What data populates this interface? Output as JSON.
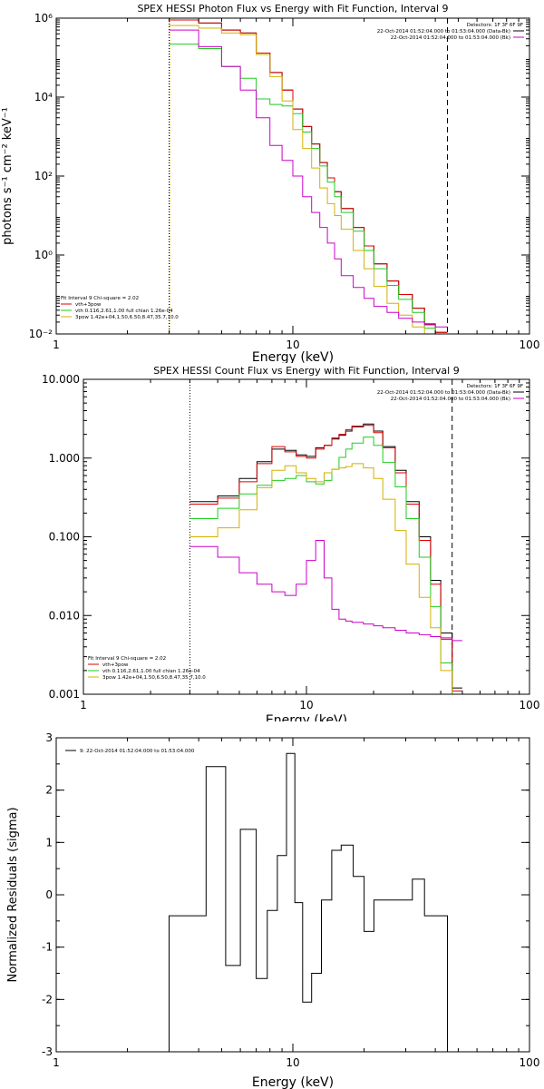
{
  "chart_data": [
    {
      "type": "line",
      "title": "SPEX HESSI Photon Flux vs Energy with Fit Function, Interval 9",
      "xlabel": "Energy (keV)",
      "ylabel": "photons s⁻¹ cm⁻² keV⁻¹",
      "xscale": "log",
      "yscale": "log",
      "xlim": [
        1,
        100
      ],
      "ylim": [
        0.01,
        1000000
      ],
      "xticks": [
        {
          "v": 1,
          "t": "1"
        },
        {
          "v": 10,
          "t": "10"
        },
        {
          "v": 100,
          "t": "100"
        }
      ],
      "yticks": [
        {
          "v": 0.01,
          "t": "10⁻²"
        },
        {
          "v": 1,
          "t": "10⁰"
        },
        {
          "v": 100,
          "t": "10²"
        },
        {
          "v": 10000,
          "t": "10⁴"
        },
        {
          "v": 1000000,
          "t": "10⁶"
        }
      ],
      "vlines": [
        {
          "x": 3,
          "style": "dotted",
          "color": "#000000"
        },
        {
          "x": 3,
          "style": "dotted",
          "color": "#d4b000"
        },
        {
          "x": 45,
          "style": "dashed",
          "color": "#000000"
        }
      ],
      "legend_right": {
        "header": "Detectors: 1F 3F 6F 9F",
        "entries": [
          {
            "text": "22-Oct-2014 01:52:04.000 to 01:53:04.000 (Data-Bk)",
            "color": "#000000"
          },
          {
            "text": "22-Oct-2014 01:52:04.000 to 01:53:04.000 (Bk)",
            "color": "#cc00cc"
          }
        ]
      },
      "legend_left": {
        "header": "Fit Interval 9   Chi-square = 2.02",
        "entries": [
          {
            "text": "vth+3pow",
            "color": "#dd0000"
          },
          {
            "text": "vth 0.116,2.61,1.00  full chian 1.26e-04",
            "color": "#22cc22"
          },
          {
            "text": "3pow 1.42e+04,1.50,6.50,8.47,35.7,10.0",
            "color": "#d4b000"
          }
        ]
      },
      "edges": [
        3,
        4,
        5,
        6,
        7,
        8,
        9,
        10,
        11,
        12,
        13,
        14,
        15,
        16,
        18,
        20,
        22,
        25,
        28,
        32,
        36,
        40,
        45
      ],
      "series": [
        {
          "key": "data",
          "color": "#000000",
          "values": [
            900000,
            750000,
            500000,
            420000,
            130000,
            42000,
            15000,
            5000,
            1800,
            650,
            220,
            90,
            40,
            15,
            5,
            1.7,
            0.6,
            0.22,
            0.1,
            0.045,
            0.018,
            0.011
          ]
        },
        {
          "key": "total",
          "color": "#dd0000",
          "values": [
            900000,
            750000,
            500000,
            420000,
            130000,
            42000,
            15000,
            5000,
            1800,
            650,
            220,
            90,
            40,
            15,
            5,
            1.7,
            0.6,
            0.22,
            0.1,
            0.045,
            0.018,
            0.011
          ]
        },
        {
          "key": "vth",
          "color": "#22cc22",
          "values": [
            220000,
            170000,
            60000,
            30000,
            9000,
            6500,
            6000,
            3800,
            1300,
            500,
            180,
            70,
            30,
            12,
            4,
            1.3,
            0.45,
            0.17,
            0.075,
            0.035,
            0.014,
            0.009
          ]
        },
        {
          "key": "pow",
          "color": "#d4b000",
          "values": [
            650000,
            560000,
            420000,
            380000,
            120000,
            33000,
            8000,
            1500,
            500,
            160,
            50,
            20,
            10,
            4.5,
            1.3,
            0.45,
            0.16,
            0.06,
            0.03,
            0.015,
            0.007,
            0.005
          ]
        },
        {
          "key": "bk",
          "color": "#cc00cc",
          "values": [
            500000,
            190000,
            60000,
            15000,
            3000,
            600,
            250,
            100,
            30,
            12,
            5,
            2,
            0.8,
            0.3,
            0.15,
            0.08,
            0.05,
            0.035,
            0.025,
            0.02,
            0.017,
            0.015
          ]
        }
      ]
    },
    {
      "type": "line",
      "title": "SPEX HESSI Count Flux vs Energy with Fit Function, Interval 9",
      "xlabel": "Energy (keV)",
      "ylabel": "",
      "xscale": "log",
      "yscale": "log",
      "xlim": [
        1,
        100
      ],
      "ylim": [
        0.001,
        10
      ],
      "xticks": [
        {
          "v": 1,
          "t": "1"
        },
        {
          "v": 10,
          "t": "10"
        },
        {
          "v": 100,
          "t": "100"
        }
      ],
      "yticks": [
        {
          "v": 0.001,
          "t": "0.001"
        },
        {
          "v": 0.01,
          "t": "0.010"
        },
        {
          "v": 0.1,
          "t": "0.100"
        },
        {
          "v": 1,
          "t": "1.000"
        },
        {
          "v": 10,
          "t": "10.000"
        }
      ],
      "vlines": [
        {
          "x": 3,
          "style": "dotted",
          "color": "#000000"
        },
        {
          "x": 45,
          "style": "dashed",
          "color": "#000000"
        }
      ],
      "legend_right": {
        "header": "Detectors: 1F 3F 6F 9F",
        "entries": [
          {
            "text": "22-Oct-2014 01:52:04.000 to 01:53:04.000 (Data-Bk)",
            "color": "#000000"
          },
          {
            "text": "22-Oct-2014 01:52:04.000 to 01:53:04.000 (Bk)",
            "color": "#cc00cc"
          }
        ]
      },
      "legend_left": {
        "header": "Fit Interval 9   Chi-square = 2.02",
        "entries": [
          {
            "text": "vth+3pow",
            "color": "#dd0000"
          },
          {
            "text": "vth 0.116,2.61,1.00  full chian 1.26e-04",
            "color": "#22cc22"
          },
          {
            "text": "3pow 1.42e+04,1.50,6.50,8.47,35.7,10.0",
            "color": "#d4b000"
          }
        ]
      },
      "edges": [
        3,
        4,
        5,
        6,
        7,
        8,
        9,
        10,
        11,
        12,
        13,
        14,
        15,
        16,
        18,
        20,
        22,
        25,
        28,
        32,
        36,
        40,
        45,
        50
      ],
      "series": [
        {
          "key": "data",
          "color": "#000000",
          "values": [
            0.28,
            0.33,
            0.55,
            0.9,
            1.3,
            1.25,
            1.1,
            1.05,
            1.35,
            1.45,
            1.75,
            1.95,
            2.2,
            2.5,
            2.7,
            2.2,
            1.4,
            0.7,
            0.28,
            0.1,
            0.028,
            0.006,
            0.0012
          ]
        },
        {
          "key": "total",
          "color": "#dd0000",
          "values": [
            0.26,
            0.31,
            0.5,
            0.85,
            1.4,
            1.2,
            1.05,
            1.0,
            1.3,
            1.45,
            1.8,
            2.0,
            2.3,
            2.55,
            2.6,
            2.1,
            1.35,
            0.65,
            0.26,
            0.09,
            0.025,
            0.005,
            0.0011
          ]
        },
        {
          "key": "vth",
          "color": "#22cc22",
          "values": [
            0.17,
            0.23,
            0.35,
            0.45,
            0.52,
            0.55,
            0.6,
            0.5,
            0.47,
            0.52,
            0.72,
            1.02,
            1.3,
            1.55,
            1.85,
            1.45,
            0.88,
            0.43,
            0.17,
            0.055,
            0.013,
            0.0025,
            0.0006
          ]
        },
        {
          "key": "pow",
          "color": "#d4b000",
          "values": [
            0.1,
            0.13,
            0.22,
            0.42,
            0.7,
            0.8,
            0.65,
            0.55,
            0.5,
            0.65,
            0.72,
            0.75,
            0.78,
            0.85,
            0.75,
            0.55,
            0.3,
            0.12,
            0.045,
            0.017,
            0.007,
            0.002,
            0.0004
          ]
        },
        {
          "key": "bk",
          "color": "#cc00cc",
          "values": [
            0.075,
            0.055,
            0.035,
            0.025,
            0.02,
            0.018,
            0.025,
            0.05,
            0.09,
            0.03,
            0.012,
            0.009,
            0.0085,
            0.0082,
            0.0078,
            0.0074,
            0.007,
            0.0065,
            0.006,
            0.0057,
            0.0054,
            0.0052,
            0.0048
          ]
        }
      ]
    },
    {
      "type": "line",
      "title": "",
      "xlabel": "Energy (keV)",
      "ylabel": "Normalized Residuals (sigma)",
      "xscale": "log",
      "yscale": "linear",
      "xlim": [
        1,
        100
      ],
      "ylim": [
        -3,
        3
      ],
      "xticks": [
        {
          "v": 1,
          "t": "1"
        },
        {
          "v": 10,
          "t": "10"
        },
        {
          "v": 100,
          "t": "100"
        }
      ],
      "yticks": [
        {
          "v": -3,
          "t": "-3"
        },
        {
          "v": -2,
          "t": "-2"
        },
        {
          "v": -1,
          "t": "-1"
        },
        {
          "v": 0,
          "t": "0"
        },
        {
          "v": 1,
          "t": "1"
        },
        {
          "v": 2,
          "t": "2"
        },
        {
          "v": 3,
          "t": "3"
        }
      ],
      "vlines": [],
      "legend_right": null,
      "legend_left_top": {
        "text": "9: 22-Oct-2014 01:52:04.000 to 01:53:04.000",
        "color": "#000000"
      },
      "edges": [
        3,
        3.6,
        4.3,
        5.2,
        6,
        7,
        7.8,
        8.6,
        9.4,
        10.2,
        11,
        12,
        13.2,
        14.6,
        16,
        18,
        20,
        22,
        25,
        28,
        32,
        36,
        40,
        45
      ],
      "series": [
        {
          "key": "resid",
          "color": "#000000",
          "values": [
            -0.4,
            -0.4,
            2.45,
            -1.35,
            1.25,
            -1.6,
            -0.3,
            0.75,
            2.7,
            -0.15,
            -2.05,
            -1.5,
            -0.1,
            0.85,
            0.95,
            0.35,
            -0.7,
            -0.1,
            -0.1,
            -0.1,
            0.3,
            -0.4,
            -0.4
          ]
        }
      ]
    }
  ]
}
